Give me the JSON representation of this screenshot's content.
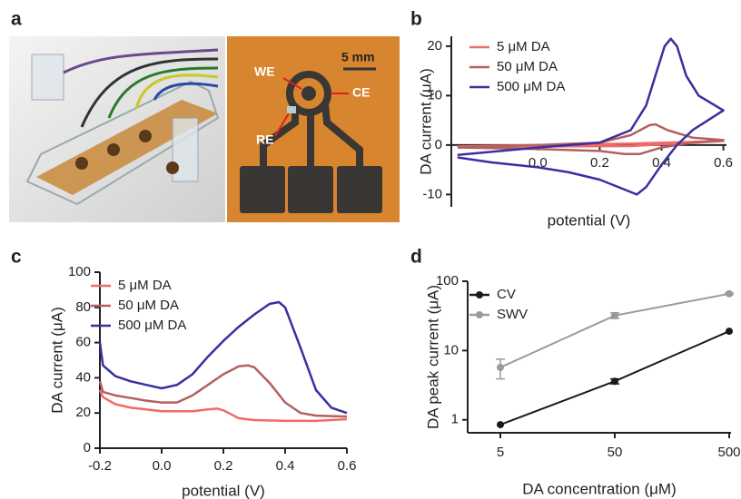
{
  "panel_labels": [
    "a",
    "b",
    "c",
    "d"
  ],
  "photo_labels": {
    "we": "WE",
    "ce": "CE",
    "re": "RE",
    "scale": "5 mm"
  },
  "chart_data": [
    {
      "type": "line",
      "xlabel": "potential (V)",
      "ylabel": "DA current (μA)",
      "xlim": [
        -0.28,
        0.61
      ],
      "ylim": [
        -12.5,
        22
      ],
      "xticks": [
        {
          "value": 0,
          "label": "0.0"
        },
        0.2,
        0.4,
        0.6
      ],
      "yticks": [
        -10,
        0,
        10,
        20
      ],
      "legend": "upper left",
      "series": [
        {
          "name": "5 μM DA",
          "color": "#f06a6a",
          "x": [
            -0.26,
            0,
            0.3,
            0.6,
            0.3,
            0,
            -0.26
          ],
          "values": [
            -0.3,
            0,
            0.3,
            0.8,
            -0.2,
            -0.3,
            -0.3
          ]
        },
        {
          "name": "50 μM DA",
          "color": "#b5605f",
          "x": [
            -0.26,
            0,
            0.2,
            0.3,
            0.36,
            0.38,
            0.42,
            0.5,
            0.6,
            0.5,
            0.4,
            0.33,
            0.28,
            0.2,
            0,
            -0.26
          ],
          "values": [
            -0.5,
            0,
            0.5,
            2,
            4,
            4.2,
            3,
            1.5,
            1,
            0.5,
            -0.5,
            -1.8,
            -1.8,
            -1.2,
            -0.8,
            -0.5
          ]
        },
        {
          "name": "500 μM DA",
          "color": "#3a2f9e",
          "x": [
            -0.26,
            0,
            0.2,
            0.3,
            0.35,
            0.38,
            0.41,
            0.43,
            0.45,
            0.48,
            0.52,
            0.6,
            0.55,
            0.5,
            0.45,
            0.4,
            0.35,
            0.32,
            0.28,
            0.2,
            0.1,
            0,
            -0.15,
            -0.26
          ],
          "values": [
            -2,
            -0.5,
            0.5,
            3,
            8,
            14,
            20,
            21.5,
            20,
            14,
            10,
            7,
            5,
            3,
            0,
            -4,
            -8.5,
            -10,
            -9,
            -7,
            -5.5,
            -4.5,
            -3.5,
            -2.5
          ]
        }
      ]
    },
    {
      "type": "line",
      "xlabel": "potential (V)",
      "ylabel": "DA current (μA)",
      "xlim": [
        -0.2,
        0.6
      ],
      "ylim": [
        0,
        100
      ],
      "xticks": [
        -0.2,
        {
          "value": 0,
          "label": "0.0"
        },
        0.2,
        0.4,
        0.6
      ],
      "yticks": [
        0,
        20,
        40,
        60,
        80,
        100
      ],
      "legend": "upper left",
      "series": [
        {
          "name": "5 μM DA",
          "color": "#f06a6a",
          "x": [
            -0.2,
            -0.19,
            -0.15,
            -0.1,
            -0.05,
            0,
            0.05,
            0.1,
            0.15,
            0.18,
            0.2,
            0.25,
            0.3,
            0.4,
            0.5,
            0.6
          ],
          "values": [
            33,
            29,
            25,
            23,
            22,
            21,
            21,
            21,
            22,
            22.5,
            21.5,
            17,
            16,
            15.5,
            15.5,
            16.5
          ]
        },
        {
          "name": "50 μM DA",
          "color": "#b5605f",
          "x": [
            -0.2,
            -0.19,
            -0.15,
            -0.1,
            -0.05,
            0,
            0.05,
            0.1,
            0.15,
            0.2,
            0.25,
            0.28,
            0.3,
            0.35,
            0.4,
            0.45,
            0.5,
            0.6
          ],
          "values": [
            38,
            32,
            30,
            28.5,
            27,
            26,
            26,
            30,
            36,
            42,
            46.5,
            47,
            46,
            37,
            26,
            20,
            18.5,
            18
          ]
        },
        {
          "name": "500 μM DA",
          "color": "#3a2f9e",
          "x": [
            -0.2,
            -0.19,
            -0.15,
            -0.1,
            -0.05,
            0,
            0.05,
            0.1,
            0.15,
            0.2,
            0.25,
            0.3,
            0.35,
            0.38,
            0.4,
            0.45,
            0.5,
            0.55,
            0.6
          ],
          "values": [
            60,
            47,
            41,
            38,
            36,
            34,
            36,
            42,
            52,
            61,
            69,
            76,
            82,
            83,
            80,
            57,
            33,
            23,
            20
          ]
        }
      ]
    },
    {
      "type": "errorline",
      "xlabel": "DA concentration (μM)",
      "ylabel": "DA peak current (μA)",
      "categories": [
        "5",
        "50",
        "500"
      ],
      "ylim": [
        0.65,
        100
      ],
      "yticks": [
        1,
        10,
        100
      ],
      "ylog": true,
      "legend": "upper left",
      "series": [
        {
          "name": "CV",
          "color": "#1a1a1a",
          "values": [
            0.85,
            3.6,
            19
          ],
          "errors": [
            0,
            0.3,
            0
          ]
        },
        {
          "name": "SWV",
          "color": "#9a9a9a",
          "values": [
            5.7,
            32,
            66
          ],
          "errors": [
            1.8,
            3,
            2
          ]
        }
      ]
    }
  ]
}
